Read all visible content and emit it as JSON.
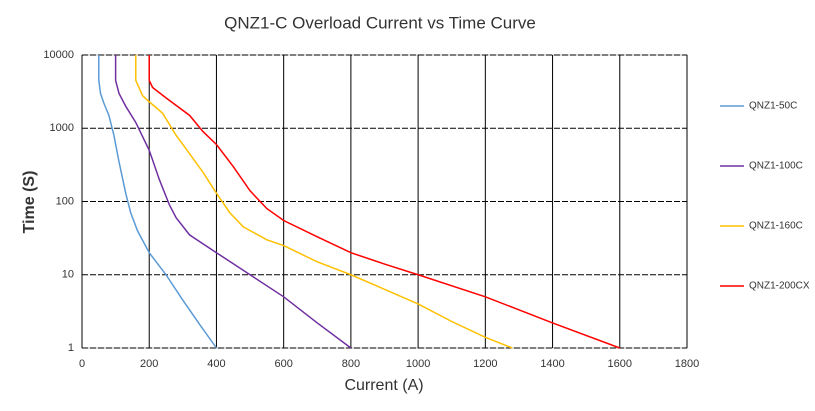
{
  "chart_data": {
    "type": "line",
    "title": "QNZ1-C Overload Current  vs  Time Curve",
    "x_label": "Current (A)",
    "y_label": "Time  (S)",
    "xlim": [
      0,
      1800
    ],
    "xticks": [
      0,
      200,
      400,
      600,
      800,
      1000,
      1200,
      1400,
      1600,
      1800
    ],
    "ylim": [
      1,
      10000
    ],
    "yticks": [
      1,
      10,
      100,
      1000,
      10000
    ],
    "y_scale": "log",
    "grid": true,
    "legend": "right",
    "series": [
      {
        "name": "QNZ1-50C",
        "color": "#5b9bd5",
        "x": [
          50,
          50,
          55,
          65,
          80,
          95,
          110,
          130,
          145,
          165,
          200,
          250,
          300,
          350,
          400
        ],
        "values": [
          10000,
          4500,
          3000,
          2200,
          1500,
          800,
          350,
          130,
          70,
          40,
          20,
          10,
          4.5,
          2.1,
          1
        ]
      },
      {
        "name": "QNZ1-100C",
        "color": "#7030a0",
        "x": [
          100,
          100,
          110,
          130,
          160,
          200,
          230,
          260,
          280,
          320,
          400,
          500,
          600,
          700,
          800
        ],
        "values": [
          10000,
          4500,
          3000,
          2000,
          1200,
          500,
          200,
          90,
          60,
          35,
          20,
          10,
          5,
          2.2,
          1
        ]
      },
      {
        "name": "QNZ1-160C",
        "color": "#ffc000",
        "x": [
          160,
          160,
          180,
          200,
          240,
          280,
          320,
          360,
          400,
          440,
          480,
          550,
          600,
          700,
          800,
          1000,
          1100,
          1200,
          1280
        ],
        "values": [
          10000,
          4500,
          2800,
          2300,
          1600,
          800,
          450,
          250,
          130,
          70,
          45,
          30,
          25,
          15,
          10,
          4,
          2.3,
          1.4,
          1
        ]
      },
      {
        "name": "QNZ1-200CX",
        "color": "#ff0000",
        "x": [
          200,
          200,
          210,
          250,
          320,
          360,
          400,
          450,
          500,
          550,
          600,
          700,
          800,
          900,
          1000,
          1200,
          1400,
          1600
        ],
        "values": [
          10000,
          4500,
          3600,
          2600,
          1500,
          900,
          600,
          300,
          140,
          80,
          55,
          33,
          20,
          14,
          10,
          5,
          2.2,
          1
        ]
      }
    ]
  }
}
